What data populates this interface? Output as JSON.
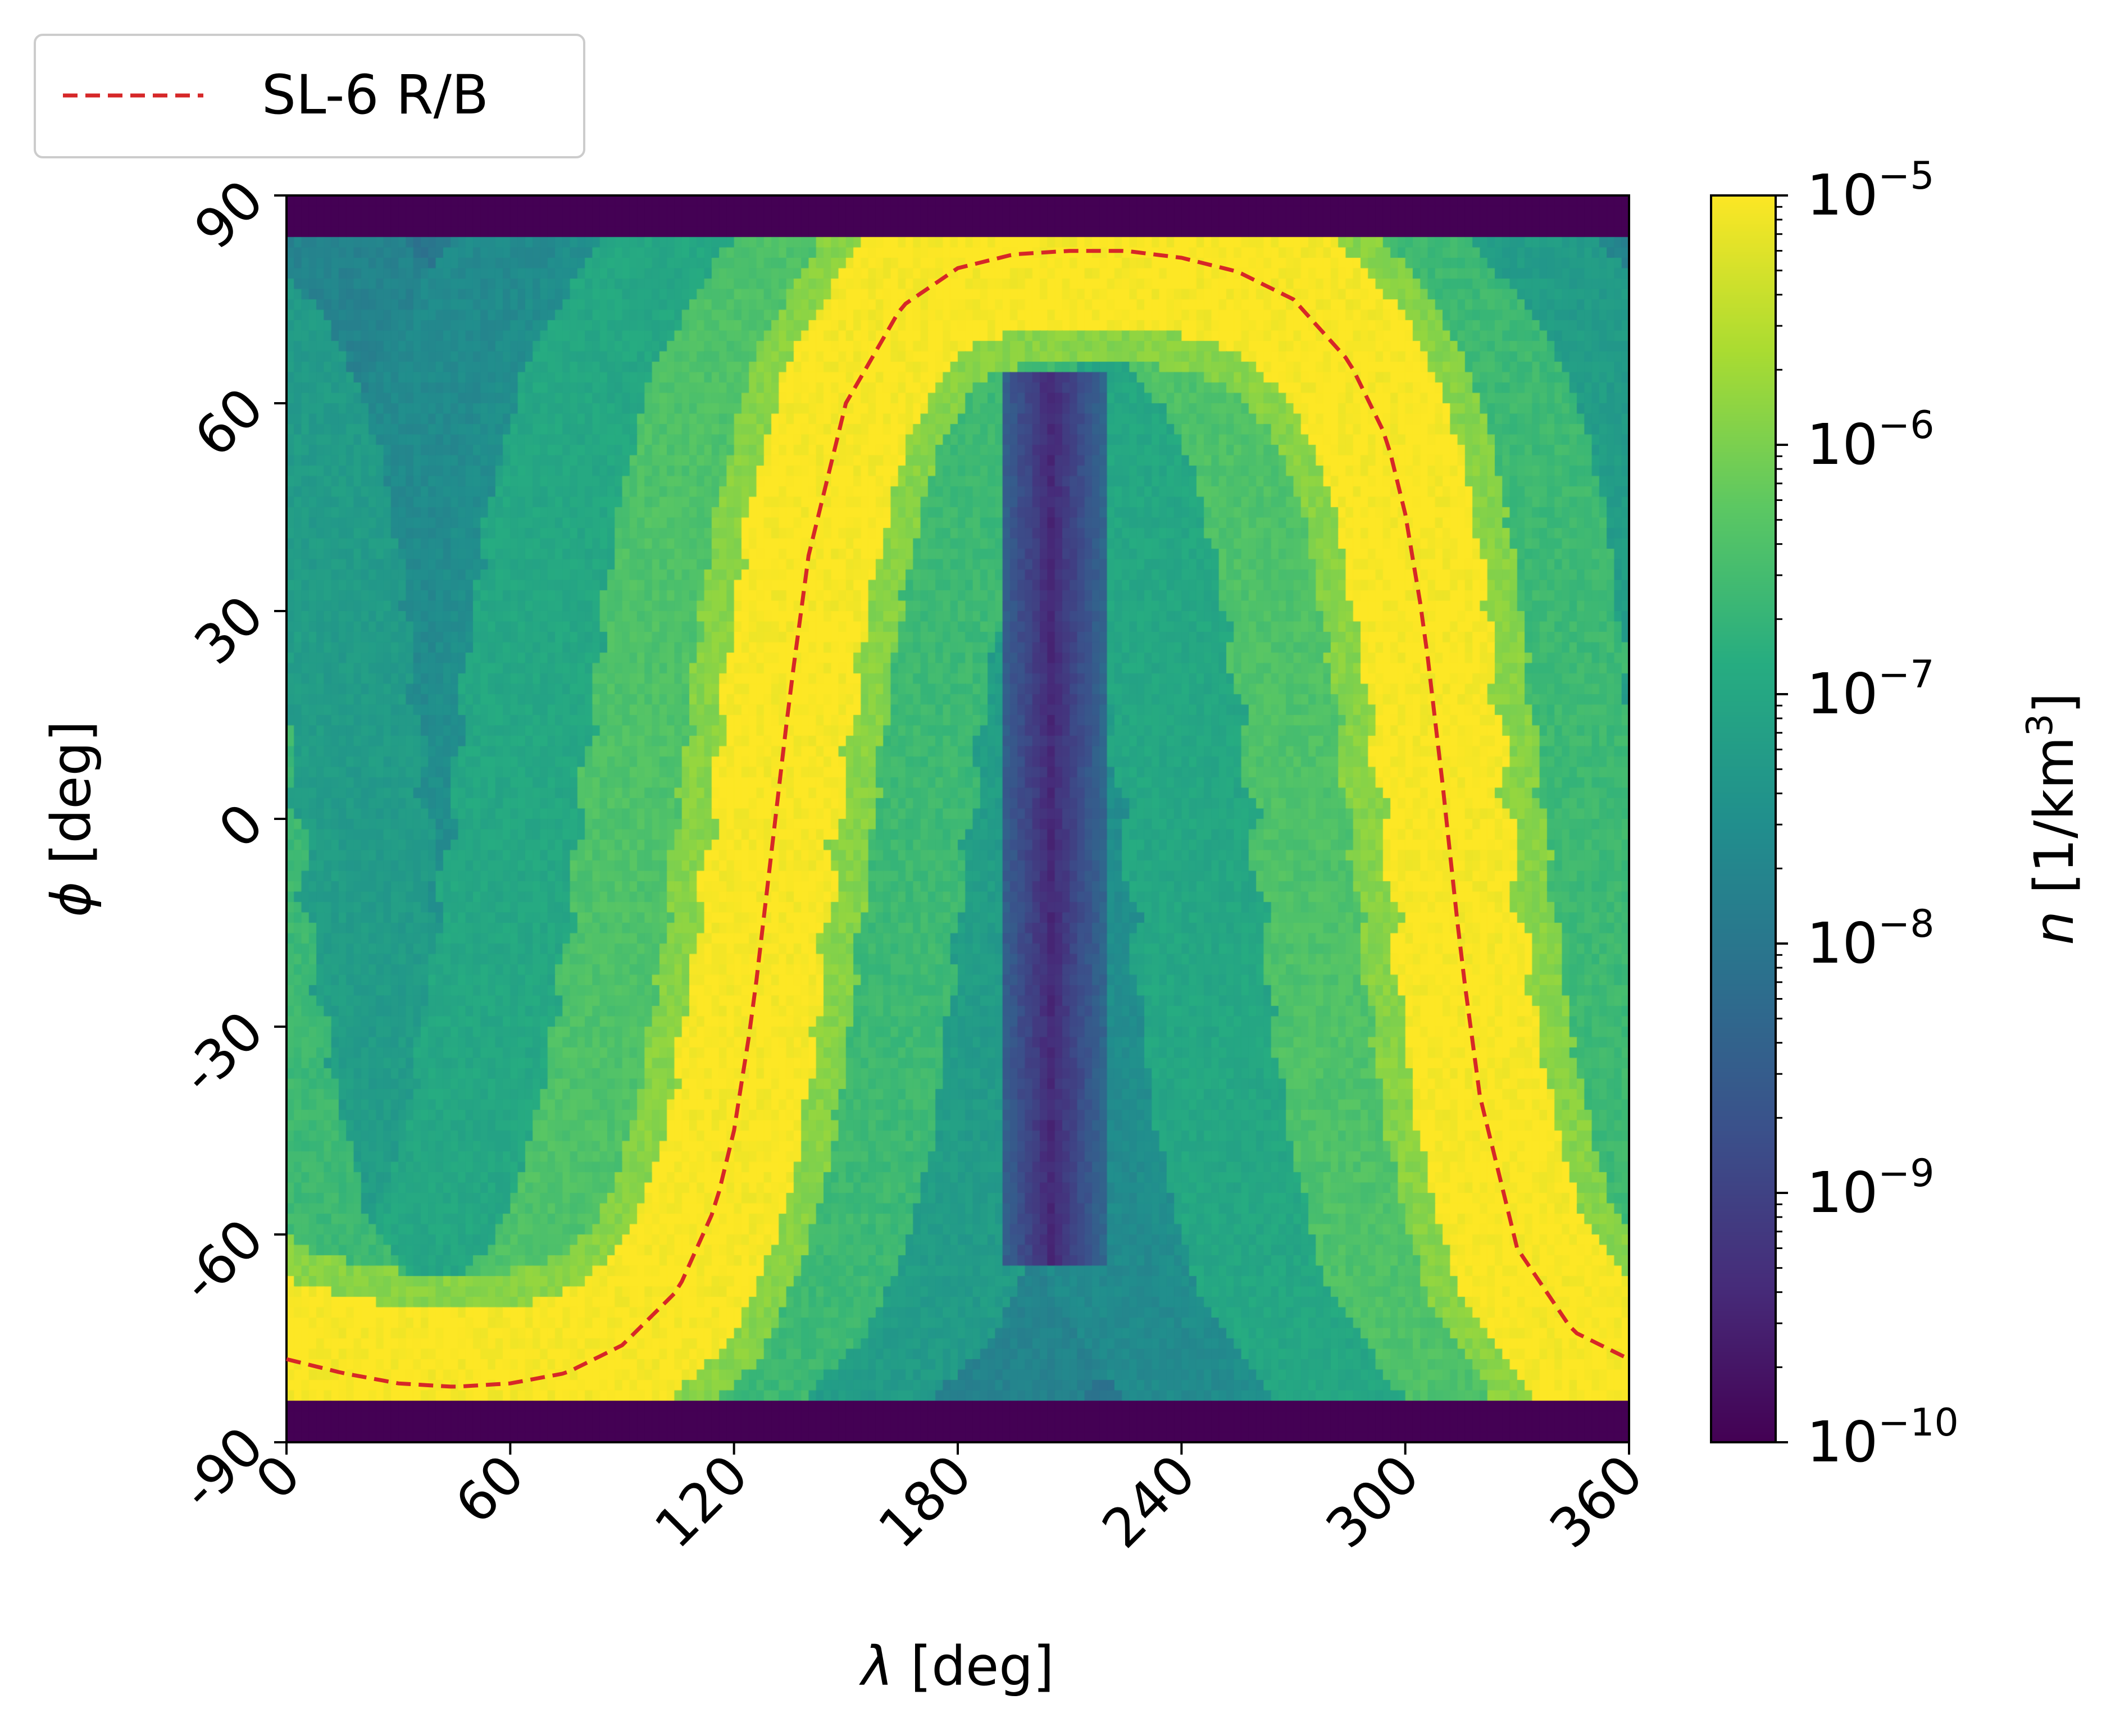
{
  "chart_data": {
    "type": "heatmap",
    "xlabel": {
      "symbol": "λ",
      "text": " [deg]"
    },
    "ylabel": {
      "symbol": "ϕ",
      "text": " [deg]"
    },
    "xlim": [
      0,
      360
    ],
    "ylim": [
      -90,
      90
    ],
    "x_ticks": [
      0,
      60,
      120,
      180,
      240,
      300,
      360
    ],
    "y_ticks": [
      -90,
      -60,
      -30,
      0,
      30,
      60,
      90
    ],
    "x_tick_labels": [
      "0",
      "60",
      "120",
      "180",
      "240",
      "300",
      "360"
    ],
    "y_tick_labels": [
      "-90",
      "-60",
      "-30",
      "0",
      "30",
      "60",
      "90"
    ],
    "colorbar": {
      "label": {
        "symbol": "n",
        "text": " [1/km",
        "sup": "3",
        "close": "]"
      },
      "scale": "log",
      "range": [
        1e-10,
        1e-05
      ],
      "colormap": "viridis",
      "ticks": [
        {
          "value": 1e-05,
          "base": "10",
          "exp": "−5"
        },
        {
          "value": 1e-06,
          "base": "10",
          "exp": "−6"
        },
        {
          "value": 1e-07,
          "base": "10",
          "exp": "−7"
        },
        {
          "value": 1e-08,
          "base": "10",
          "exp": "−8"
        },
        {
          "value": 1e-09,
          "base": "10",
          "exp": "−9"
        },
        {
          "value": 1e-10,
          "base": "10",
          "exp": "−10"
        }
      ]
    },
    "overlay_series": [
      {
        "name": "SL-6 R/B",
        "style": "dashed",
        "color": "#d62728",
        "x": [
          0,
          15,
          30,
          45,
          60,
          75,
          90,
          105,
          115,
          120,
          125,
          130,
          135,
          140,
          150,
          165,
          180,
          195,
          210,
          225,
          240,
          255,
          270,
          285,
          295,
          300,
          305,
          310,
          315,
          320,
          330,
          345,
          360
        ],
        "y": [
          -78,
          -80,
          -81.5,
          -82,
          -81.5,
          -80,
          -76,
          -68,
          -56,
          -45,
          -28,
          -5,
          18,
          38,
          60,
          74,
          79.5,
          81.5,
          82,
          82,
          81,
          79,
          75,
          66,
          55,
          44,
          28,
          5,
          -20,
          -40,
          -62,
          -74,
          -78
        ]
      }
    ],
    "density_peak_value": 1e-05,
    "density_floor_value": 1e-10
  },
  "legend": {
    "placement": "top-left outside axes",
    "entries": [
      {
        "label": "SL-6 R/B",
        "color": "#d62728",
        "style": "dashed"
      }
    ]
  },
  "colors": {
    "axis": "#000000",
    "background": "#ffffff",
    "legend_border": "#cccccc"
  }
}
